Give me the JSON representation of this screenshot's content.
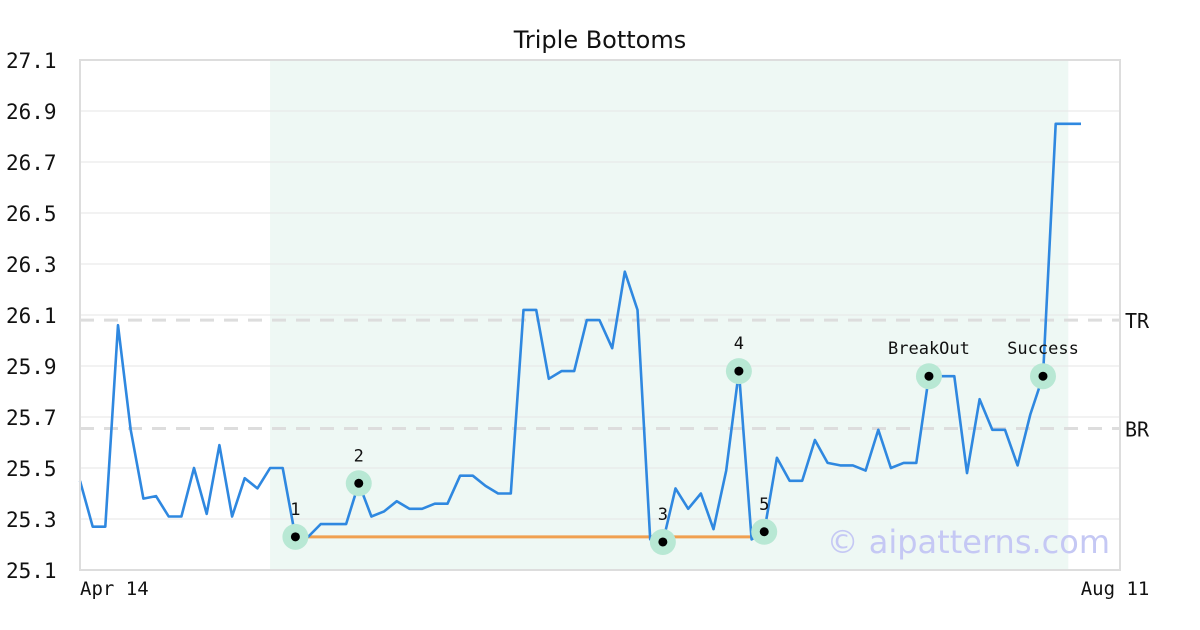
{
  "chart_data": {
    "type": "line",
    "title": "Triple Bottoms",
    "ylim": [
      25.1,
      27.1
    ],
    "yticks": [
      "25.1",
      "25.3",
      "25.5",
      "25.7",
      "25.9",
      "26.1",
      "26.3",
      "26.5",
      "26.7",
      "26.9",
      "27.1"
    ],
    "xticks": [
      {
        "label": "Apr 14",
        "index": 0
      },
      {
        "label": "Aug 11",
        "index": 82
      }
    ],
    "grid": true,
    "pattern_range": [
      15,
      78
    ],
    "series": [
      {
        "values": [
          25.45,
          25.27,
          25.27,
          26.06,
          25.65,
          25.38,
          25.39,
          25.31,
          25.31,
          25.5,
          25.32,
          25.59,
          25.31,
          25.46,
          25.42,
          25.5,
          25.5,
          25.23,
          25.23,
          25.28,
          25.28,
          25.28,
          25.44,
          25.31,
          25.33,
          25.37,
          25.34,
          25.34,
          25.36,
          25.36,
          25.47,
          25.47,
          25.43,
          25.4,
          25.4,
          26.12,
          26.12,
          25.85,
          25.88,
          25.88,
          26.08,
          26.08,
          25.97,
          26.27,
          26.12,
          25.22,
          25.21,
          25.42,
          25.34,
          25.4,
          25.26,
          25.49,
          25.88,
          25.22,
          25.25,
          25.54,
          25.45,
          25.45,
          25.61,
          25.52,
          25.51,
          25.51,
          25.49,
          25.65,
          25.5,
          25.52,
          25.52,
          25.86,
          25.86,
          25.86,
          25.48,
          25.77,
          25.65,
          25.65,
          25.51,
          25.71,
          25.86,
          26.85,
          26.85,
          26.85
        ]
      }
    ],
    "levels": [
      {
        "label": "TR",
        "value": 26.08
      },
      {
        "label": "BR",
        "value": 25.655
      }
    ],
    "baseline": {
      "from_index": 17,
      "to_index": 54,
      "value": 25.23
    },
    "points": [
      {
        "label": "1",
        "index": 17,
        "value": 25.23,
        "label_pos": "above"
      },
      {
        "label": "2",
        "index": 22,
        "value": 25.44,
        "label_pos": "above"
      },
      {
        "label": "3",
        "index": 46,
        "value": 25.21,
        "label_pos": "above"
      },
      {
        "label": "4",
        "index": 52,
        "value": 25.88,
        "label_pos": "above"
      },
      {
        "label": "5",
        "index": 54,
        "value": 25.25,
        "label_pos": "above"
      },
      {
        "label": "BreakOut",
        "index": 67,
        "value": 25.86,
        "label_pos": "above"
      },
      {
        "label": "Success",
        "index": 76,
        "value": 25.86,
        "label_pos": "above"
      }
    ],
    "watermark": "© aipatterns.com",
    "colors": {
      "line": "#2f88e0",
      "baseline": "#f0a050",
      "pattern_bg": "#eef8f4",
      "marker_halo": "#b8e8d4",
      "marker_dot": "#000000",
      "level_line": "#dddddd",
      "grid": "#e6e6e6",
      "frame": "#dddddd"
    }
  }
}
